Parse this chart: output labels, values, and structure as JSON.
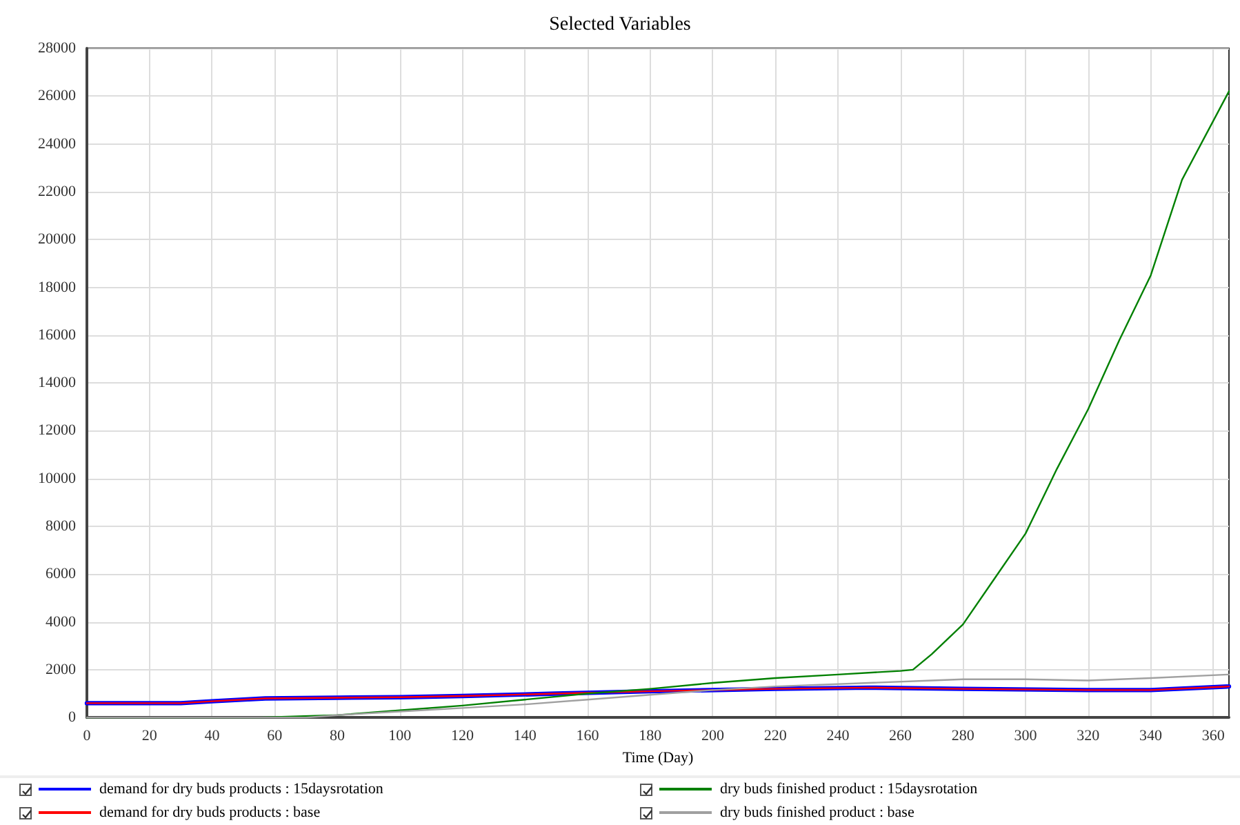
{
  "chart_data": {
    "type": "line",
    "title": "Selected Variables",
    "xlabel": "Time (Day)",
    "xlim": [
      0,
      365
    ],
    "xticks": [
      0,
      20,
      40,
      60,
      80,
      100,
      120,
      140,
      160,
      180,
      200,
      220,
      240,
      260,
      280,
      300,
      320,
      340,
      360
    ],
    "ylim": [
      0,
      28000
    ],
    "yticks": [
      0,
      2000,
      4000,
      6000,
      8000,
      10000,
      12000,
      14000,
      16000,
      18000,
      20000,
      22000,
      24000,
      26000,
      28000
    ],
    "grid": true,
    "legend": "bottom",
    "marker": "none",
    "line_style": "solid",
    "series": [
      {
        "name": "demand for dry buds products : 15daysrotation",
        "color": "#0000ff",
        "x": [
          0,
          30,
          40,
          57,
          80,
          100,
          120,
          150,
          180,
          220,
          250,
          280,
          320,
          340,
          365
        ],
        "values": [
          600,
          600,
          680,
          800,
          830,
          850,
          900,
          1000,
          1100,
          1200,
          1250,
          1200,
          1150,
          1150,
          1300
        ]
      },
      {
        "name": "demand for dry buds products : base",
        "color": "#ff0000",
        "x": [
          0,
          30,
          40,
          57,
          80,
          100,
          120,
          150,
          180,
          220,
          250,
          280,
          320,
          340,
          365
        ],
        "values": [
          600,
          600,
          680,
          800,
          830,
          850,
          900,
          1000,
          1100,
          1200,
          1250,
          1200,
          1150,
          1150,
          1300
        ]
      },
      {
        "name": "dry buds finished product : 15daysrotation",
        "color": "#008000",
        "x": [
          0,
          55,
          80,
          100,
          120,
          140,
          160,
          180,
          200,
          220,
          240,
          260,
          264,
          270,
          280,
          290,
          300,
          310,
          320,
          330,
          340,
          350,
          365
        ],
        "values": [
          0,
          0,
          100,
          300,
          500,
          750,
          1000,
          1200,
          1450,
          1650,
          1800,
          1950,
          2000,
          2650,
          3900,
          5800,
          7700,
          10400,
          12900,
          15800,
          18500,
          22500,
          26200
        ]
      },
      {
        "name": "dry buds finished product : base",
        "color": "#a0a0a0",
        "x": [
          0,
          70,
          80,
          100,
          120,
          140,
          160,
          180,
          200,
          220,
          250,
          270,
          280,
          300,
          320,
          340,
          365
        ],
        "values": [
          0,
          0,
          100,
          250,
          400,
          550,
          750,
          950,
          1150,
          1300,
          1450,
          1550,
          1600,
          1600,
          1550,
          1650,
          1800
        ]
      }
    ]
  }
}
